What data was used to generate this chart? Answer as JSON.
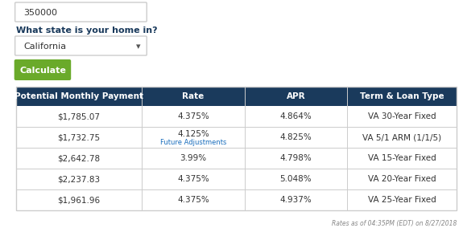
{
  "input_value": "350000",
  "state_label": "What state is your home in?",
  "state_value": "California",
  "button_text": "Calculate",
  "button_color": "#6aaa2a",
  "button_text_color": "#ffffff",
  "header_bg": "#1a3a5c",
  "header_text_color": "#ffffff",
  "header_cols": [
    "Potential Monthly Payment",
    "Rate",
    "APR",
    "Term & Loan Type"
  ],
  "row_data": [
    [
      "$1,785.07",
      "4.375%",
      "4.864%",
      "VA 30-Year Fixed"
    ],
    [
      "$1,732.75",
      "4.125%|Future Adjustments",
      "4.825%",
      "VA 5/1 ARM (1/1/5)"
    ],
    [
      "$2,642.78",
      "3.99%",
      "4.798%",
      "VA 15-Year Fixed"
    ],
    [
      "$2,237.83",
      "4.375%",
      "5.048%",
      "VA 20-Year Fixed"
    ],
    [
      "$1,961.96",
      "4.375%",
      "4.937%",
      "VA 25-Year Fixed"
    ]
  ],
  "border_color": "#cccccc",
  "footer_text": "Rates as of 04:35PM (EDT) on 8/27/2018",
  "footer_color": "#888888",
  "text_color": "#333333",
  "link_color": "#1a6ebd",
  "input_border": "#cccccc",
  "label_bold_color": "#1a3a5c"
}
